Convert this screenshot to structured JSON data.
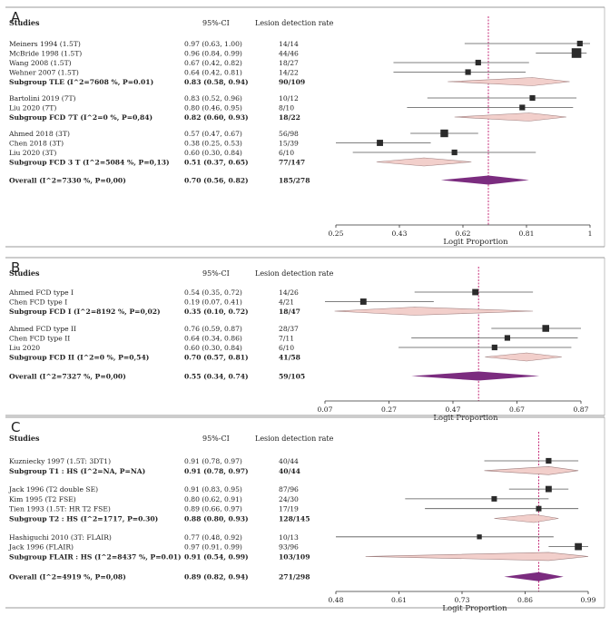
{
  "colors": {
    "subgroup_diamond": "#f2cfcb",
    "subgroup_diamond_stroke": "#a08080",
    "overall_diamond": "#7b2c7f",
    "reference_line": "#c0186b",
    "marker": "#2b2b2b",
    "frame": "#999999"
  },
  "chart_data": [
    {
      "type": "forest",
      "panel": "A",
      "columns": {
        "study": "Studies",
        "ci": "95%-CI",
        "rate": "Lesion detection rate"
      },
      "xlabel": "Logit Proportion",
      "xticks": [
        "0.25",
        "0.43",
        "0.62",
        "0.81",
        "1"
      ],
      "xlim": [
        0.25,
        1.0
      ],
      "reference": 0.7,
      "rows": [
        {
          "kind": "study",
          "label": "Meiners 1994 (1.5T)",
          "ci": "0.97 (0.63, 1.00)",
          "rate": "14/14",
          "est": 0.97,
          "lo": 0.63,
          "hi": 1.0,
          "w": 1
        },
        {
          "kind": "study",
          "label": "McBride 1998 (1.5T)",
          "ci": "0.96 (0.84, 0.99)",
          "rate": "44/46",
          "est": 0.96,
          "lo": 0.84,
          "hi": 0.99,
          "w": 3
        },
        {
          "kind": "study",
          "label": "Wang 2008 (1.5T)",
          "ci": "0.67 (0.42, 0.82)",
          "rate": "18/27",
          "est": 0.67,
          "lo": 0.42,
          "hi": 0.82,
          "w": 1
        },
        {
          "kind": "study",
          "label": "Wehner 2007 (1.5T)",
          "ci": "0.64 (0.42, 0.81)",
          "rate": "14/22",
          "est": 0.64,
          "lo": 0.42,
          "hi": 0.81,
          "w": 1
        },
        {
          "kind": "subgroup",
          "label": "Subgroup TLE (I^2=7608 %, P=0.01)",
          "ci": "0.83 (0.58, 0.94)",
          "rate": "90/109",
          "est": 0.83,
          "lo": 0.58,
          "hi": 0.94
        },
        {
          "kind": "gap"
        },
        {
          "kind": "study",
          "label": "Bartolini 2019 (7T)",
          "ci": "0.83 (0.52, 0.96)",
          "rate": "10/12",
          "est": 0.83,
          "lo": 0.52,
          "hi": 0.96,
          "w": 1
        },
        {
          "kind": "study",
          "label": "Liu 2020 (7T)",
          "ci": "0.80 (0.46, 0.95)",
          "rate": "8/10",
          "est": 0.8,
          "lo": 0.46,
          "hi": 0.95,
          "w": 1
        },
        {
          "kind": "subgroup",
          "label": "Subgroup FCD 7T (I^2=0 %, P=0,84)",
          "ci": "0.82 (0.60, 0.93)",
          "rate": "18/22",
          "est": 0.82,
          "lo": 0.6,
          "hi": 0.93
        },
        {
          "kind": "gap"
        },
        {
          "kind": "study",
          "label": "Ahmed 2018 (3T)",
          "ci": "0.57 (0.47, 0.67)",
          "rate": "56/98",
          "est": 0.57,
          "lo": 0.47,
          "hi": 0.67,
          "w": 2
        },
        {
          "kind": "study",
          "label": "Chen 2018 (3T)",
          "ci": "0.38 (0.25, 0.53)",
          "rate": "15/39",
          "est": 0.38,
          "lo": 0.25,
          "hi": 0.53,
          "w": 1.3
        },
        {
          "kind": "study",
          "label": "Liu 2020 (3T)",
          "ci": "0.60 (0.30, 0.84)",
          "rate": "6/10",
          "est": 0.6,
          "lo": 0.3,
          "hi": 0.84,
          "w": 1
        },
        {
          "kind": "subgroup",
          "label": "Subgroup FCD 3 T (I^2=5084 %, P=0,13)",
          "ci": "0.51 (0.37, 0.65)",
          "rate": "77/147",
          "est": 0.51,
          "lo": 0.37,
          "hi": 0.65
        },
        {
          "kind": "gap"
        },
        {
          "kind": "overall",
          "label": "Overall (I^2=7330 %, P=0,00)",
          "ci": "0.70 (0.56, 0.82)",
          "rate": "185/278",
          "est": 0.7,
          "lo": 0.56,
          "hi": 0.82
        }
      ]
    },
    {
      "type": "forest",
      "panel": "B",
      "columns": {
        "study": "Studies",
        "ci": "95%-CI",
        "rate": "Lesion detection rate"
      },
      "xlabel": "Logit Proportion",
      "xticks": [
        "0.07",
        "0.27",
        "0.47",
        "0.67",
        "0.87"
      ],
      "xlim": [
        0.07,
        0.87
      ],
      "reference": 0.55,
      "rows": [
        {
          "kind": "study",
          "label": "Ahmed FCD type I",
          "ci": "0.54 (0.35, 0.72)",
          "rate": "14/26",
          "est": 0.54,
          "lo": 0.35,
          "hi": 0.72,
          "w": 1.3
        },
        {
          "kind": "study",
          "label": "Chen FCD type I",
          "ci": "0.19 (0.07, 0.41)",
          "rate": "4/21",
          "est": 0.19,
          "lo": 0.07,
          "hi": 0.41,
          "w": 1.3
        },
        {
          "kind": "subgroup",
          "label": "Subgroup FCD I (I^2=8192 %, P=0,02)",
          "ci": "0.35 (0.10, 0.72)",
          "rate": "18/47",
          "est": 0.35,
          "lo": 0.1,
          "hi": 0.72
        },
        {
          "kind": "gap"
        },
        {
          "kind": "study",
          "label": "Ahmed FCD type II",
          "ci": "0.76 (0.59, 0.87)",
          "rate": "28/37",
          "est": 0.76,
          "lo": 0.59,
          "hi": 0.87,
          "w": 1.6
        },
        {
          "kind": "study",
          "label": "Chen FCD type II",
          "ci": "0.64 (0.34, 0.86)",
          "rate": "7/11",
          "est": 0.64,
          "lo": 0.34,
          "hi": 0.86,
          "w": 1
        },
        {
          "kind": "study",
          "label": "Liu 2020",
          "ci": "0.60 (0.30, 0.84)",
          "rate": "6/10",
          "est": 0.6,
          "lo": 0.3,
          "hi": 0.84,
          "w": 1
        },
        {
          "kind": "subgroup",
          "label": "Subgroup FCD II (I^2=0 %, P=0,54)",
          "ci": "0.70 (0.57, 0.81)",
          "rate": "41/58",
          "est": 0.7,
          "lo": 0.57,
          "hi": 0.81
        },
        {
          "kind": "gap"
        },
        {
          "kind": "overall",
          "label": "Overall (I^2=7327 %, P=0,00)",
          "ci": "0.55 (0.34, 0.74)",
          "rate": "59/105",
          "est": 0.55,
          "lo": 0.34,
          "hi": 0.74
        }
      ]
    },
    {
      "type": "forest",
      "panel": "C",
      "columns": {
        "study": "Studies",
        "ci": "95%-CI",
        "rate": "Lesion detection rate"
      },
      "xlabel": "Logit Proportion",
      "xticks": [
        "0.48",
        "0.61",
        "0.73",
        "0.86",
        "0.99"
      ],
      "xlim": [
        0.48,
        0.99
      ],
      "reference": 0.89,
      "rows": [
        {
          "kind": "study",
          "label": "Kuzniecky 1997 (1.5T: 3DT1)",
          "ci": "0.91 (0.78, 0.97)",
          "rate": "40/44",
          "est": 0.91,
          "lo": 0.78,
          "hi": 0.97,
          "w": 1
        },
        {
          "kind": "subgroup",
          "label": "Subgroup T1 : HS (I^2=NA, P=NA)",
          "ci": "0.91 (0.78, 0.97)",
          "rate": "40/44",
          "est": 0.91,
          "lo": 0.78,
          "hi": 0.97
        },
        {
          "kind": "gap"
        },
        {
          "kind": "study",
          "label": "Jack 1996 (T2 double SE)",
          "ci": "0.91 (0.83, 0.95)",
          "rate": "87/96",
          "est": 0.91,
          "lo": 0.83,
          "hi": 0.95,
          "w": 1.3
        },
        {
          "kind": "study",
          "label": "Kim 1995 (T2 FSE)",
          "ci": "0.80 (0.62, 0.91)",
          "rate": "24/30",
          "est": 0.8,
          "lo": 0.62,
          "hi": 0.91,
          "w": 0.9
        },
        {
          "kind": "study",
          "label": "Tien 1993 (1.5T: HR T2 FSE)",
          "ci": "0.89 (0.66, 0.97)",
          "rate": "17/19",
          "est": 0.89,
          "lo": 0.66,
          "hi": 0.97,
          "w": 0.9
        },
        {
          "kind": "subgroup",
          "label": "Subgroup T2 : HS (I^2=1717, P=0.30)",
          "ci": "0.88 (0.80, 0.93)",
          "rate": "128/145",
          "est": 0.88,
          "lo": 0.8,
          "hi": 0.93
        },
        {
          "kind": "gap"
        },
        {
          "kind": "study",
          "label": "Hashiguchi 2010 (3T: FLAIR)",
          "ci": "0.77 (0.48, 0.92)",
          "rate": "10/13",
          "est": 0.77,
          "lo": 0.48,
          "hi": 0.92,
          "w": 0.6
        },
        {
          "kind": "study",
          "label": "Jack 1996 (FLAIR)",
          "ci": "0.97 (0.91, 0.99)",
          "rate": "93/96",
          "est": 0.97,
          "lo": 0.91,
          "hi": 0.99,
          "w": 1.7
        },
        {
          "kind": "subgroup",
          "label": "Subgroup FLAIR : HS (I^2=8437 %, P=0.01)",
          "ci": "0.91 (0.54, 0.99)",
          "rate": "103/109",
          "est": 0.91,
          "lo": 0.54,
          "hi": 0.99
        },
        {
          "kind": "gap"
        },
        {
          "kind": "overall",
          "label": "Overall (I^2=4919 %, P=0,08)",
          "ci": "0.89 (0.82, 0.94)",
          "rate": "271/298",
          "est": 0.89,
          "lo": 0.82,
          "hi": 0.94
        }
      ]
    }
  ]
}
